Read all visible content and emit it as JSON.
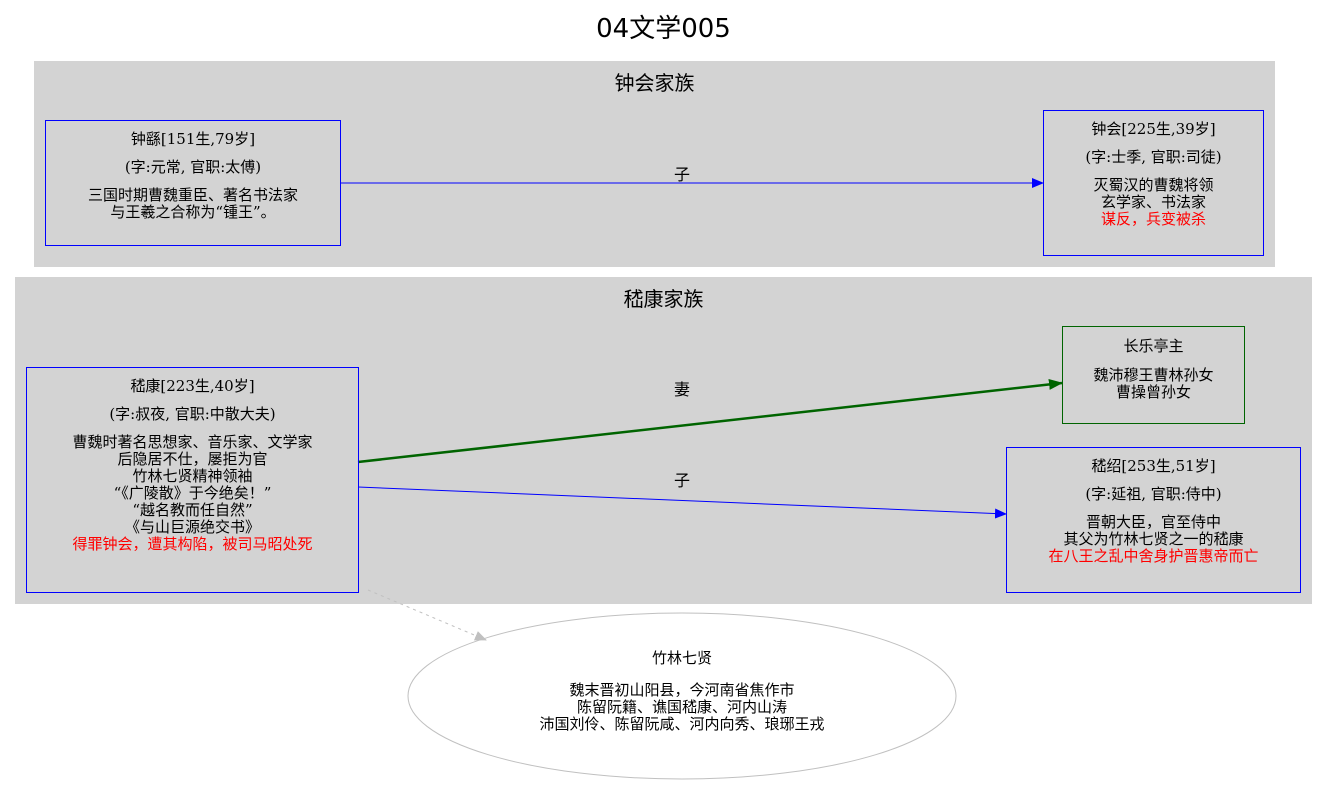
{
  "title": "04文学005",
  "clusters": [
    {
      "label": "钟会家族"
    },
    {
      "label": "嵇康家族"
    }
  ],
  "nodes": {
    "zhongyao": {
      "name": "钟繇[151生,79岁]",
      "zi": "(字:元常, 官职:太傅)",
      "desc": [
        "三国时期曹魏重臣、著名书法家",
        "与王羲之合称为“锺王”。"
      ]
    },
    "zhonghui": {
      "name": "钟会[225生,39岁]",
      "zi": "(字:士季, 官职:司徒)",
      "desc": [
        "灭蜀汉的曹魏将领",
        "玄学家、书法家"
      ],
      "red": "谋反，兵变被杀"
    },
    "jikang": {
      "name": "嵇康[223生,40岁]",
      "zi": "(字:叔夜, 官职:中散大夫)",
      "desc": [
        "曹魏时著名思想家、音乐家、文学家",
        "后隐居不仕，屡拒为官",
        "竹林七贤精神领袖",
        "“《广陵散》于今绝矣！”",
        "“越名教而任自然”",
        "《与山巨源绝交书》"
      ],
      "red": "得罪钟会，遭其构陷，被司马昭处死"
    },
    "changle": {
      "name": "长乐亭主",
      "desc": [
        "魏沛穆王曹林孙女",
        "曹操曾孙女"
      ]
    },
    "jishao": {
      "name": "嵇绍[253生,51岁]",
      "zi": "(字:延祖, 官职:侍中)",
      "desc": [
        "晋朝大臣，官至侍中",
        "其父为竹林七贤之一的嵇康"
      ],
      "red": "在八王之乱中舍身护晋惠帝而亡"
    },
    "zhulin": {
      "name": "竹林七贤",
      "desc": [
        "魏末晋初山阳县，今河南省焦作市",
        "陈留阮籍、谯国嵇康、河内山涛",
        "沛国刘伶、陈留阮咸、河内向秀、琅琊王戎"
      ]
    }
  },
  "edges": {
    "zhongyao_zhonghui": "子",
    "jikang_changle": "妻",
    "jikang_jishao": "子"
  },
  "colors": {
    "cluster_bg": "#d3d3d3",
    "node_border": "#0000ff",
    "spouse_edge": "#006400",
    "highlight_text": "#ff0000",
    "link_edge": "#c0c0c0"
  }
}
